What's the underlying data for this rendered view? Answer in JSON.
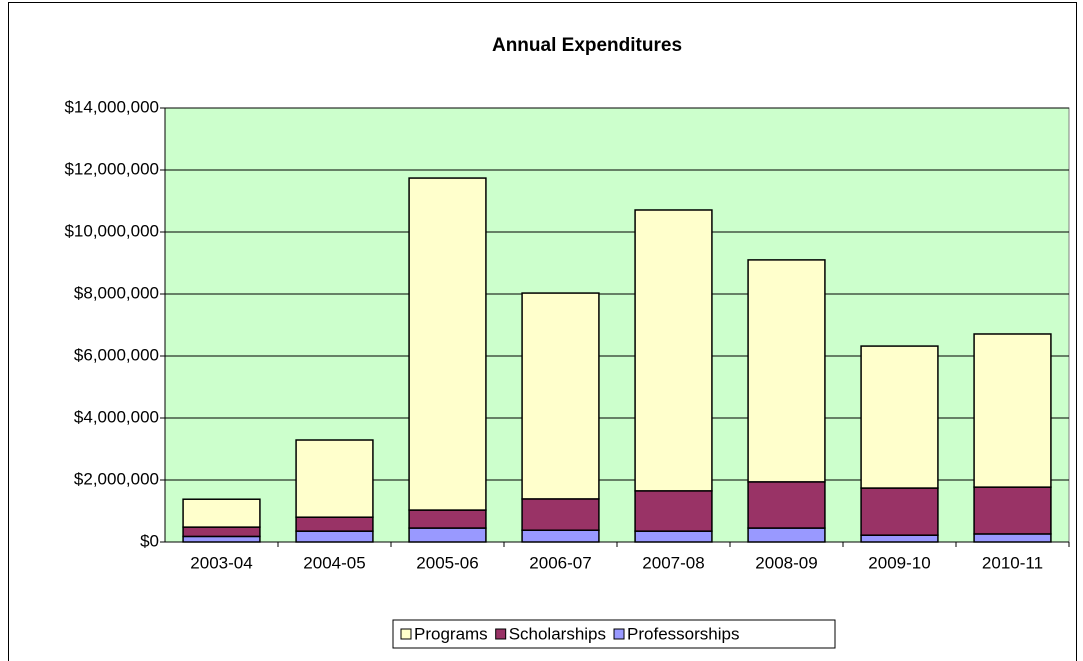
{
  "chart_data": {
    "type": "stacked_bar",
    "title": "Annual Expenditures",
    "categories": [
      "2003-04",
      "2004-05",
      "2005-06",
      "2006-07",
      "2007-08",
      "2008-09",
      "2009-10",
      "2010-11"
    ],
    "series": [
      {
        "name": "Professorships",
        "color": "#9999ff",
        "values": [
          180000,
          350000,
          450000,
          380000,
          350000,
          450000,
          220000,
          260000
        ]
      },
      {
        "name": "Scholarships",
        "color": "#993366",
        "values": [
          300000,
          450000,
          580000,
          1010000,
          1300000,
          1490000,
          1520000,
          1510000
        ]
      },
      {
        "name": "Programs",
        "color": "#ffffcc",
        "values": [
          900000,
          2490000,
          10710000,
          6640000,
          9060000,
          7160000,
          4580000,
          4940000
        ]
      }
    ],
    "ylim": [
      0,
      14000000
    ],
    "yticks": [
      {
        "value": 0,
        "label": "$0"
      },
      {
        "value": 2000000,
        "label": "$2,000,000"
      },
      {
        "value": 4000000,
        "label": "$4,000,000"
      },
      {
        "value": 6000000,
        "label": "$6,000,000"
      },
      {
        "value": 8000000,
        "label": "$8,000,000"
      },
      {
        "value": 10000000,
        "label": "$10,000,000"
      },
      {
        "value": 12000000,
        "label": "$12,000,000"
      },
      {
        "value": 14000000,
        "label": "$14,000,000"
      }
    ],
    "grid": true,
    "legend": "bottom",
    "plot_background": "#ccffcc"
  }
}
